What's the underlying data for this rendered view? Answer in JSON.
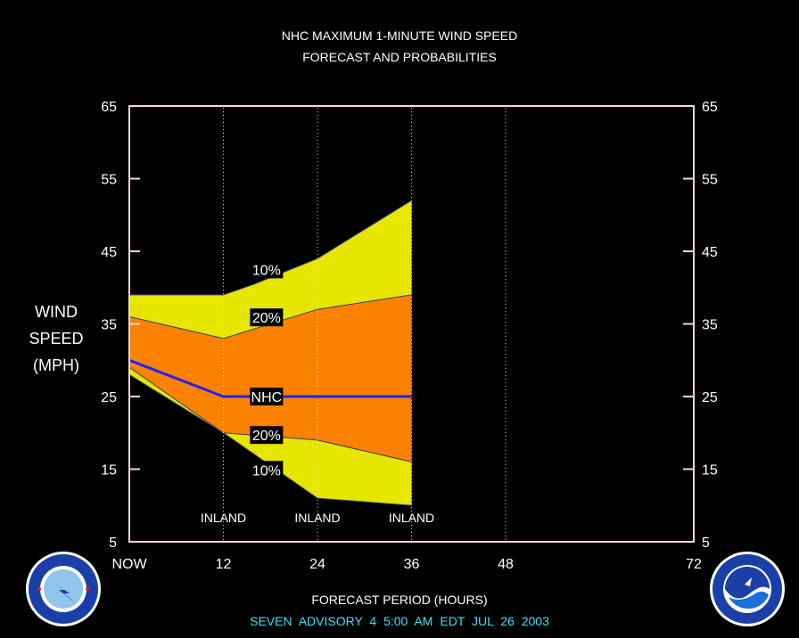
{
  "title_line1": "NHC MAXIMUM 1-MINUTE WIND SPEED",
  "title_line2": "FORECAST AND PROBABILITIES",
  "ylabel_lines": [
    "WIND",
    "SPEED",
    "(MPH)"
  ],
  "xlabel": "FORECAST PERIOD (HOURS)",
  "footer": "SEVEN   ADVISORY  4 5:00 AM  EDT  JUL 26 2003",
  "colors": {
    "background": "#000000",
    "band_10": "#e6e600",
    "band_20": "#fa8200",
    "nhc_line": "#2020ff",
    "frame": "#f2d6d6",
    "footer_text": "#40e0f0"
  },
  "logos": {
    "left": "nws-logo",
    "right": "noaa-logo"
  },
  "chart_data": {
    "type": "area",
    "xlim": [
      0,
      72
    ],
    "ylim": [
      5,
      65
    ],
    "x_ticks": [
      {
        "value": 0,
        "label": "NOW"
      },
      {
        "value": 12,
        "label": "12"
      },
      {
        "value": 24,
        "label": "24"
      },
      {
        "value": 36,
        "label": "36"
      },
      {
        "value": 48,
        "label": "48"
      },
      {
        "value": 72,
        "label": "72"
      }
    ],
    "y_ticks": [
      5,
      15,
      25,
      35,
      45,
      55,
      65
    ],
    "vertical_grid_x": [
      12,
      24,
      36,
      48
    ],
    "series": [
      {
        "name": "10%",
        "upper": [
          [
            0,
            39
          ],
          [
            12,
            39
          ],
          [
            16,
            40.5
          ],
          [
            24,
            44
          ],
          [
            36,
            52
          ]
        ],
        "lower": [
          [
            0,
            28
          ],
          [
            12,
            20
          ],
          [
            16,
            17
          ],
          [
            20,
            14
          ],
          [
            24,
            11
          ],
          [
            36,
            10
          ]
        ]
      },
      {
        "name": "20%",
        "upper": [
          [
            0,
            36
          ],
          [
            12,
            33
          ],
          [
            24,
            37
          ],
          [
            36,
            39
          ]
        ],
        "lower": [
          [
            0,
            29
          ],
          [
            12,
            20
          ],
          [
            24,
            19
          ],
          [
            36,
            16
          ]
        ]
      },
      {
        "name": "NHC",
        "values": [
          [
            0,
            30
          ],
          [
            12,
            25
          ],
          [
            24,
            25
          ],
          [
            36,
            25
          ]
        ]
      }
    ],
    "annotations": [
      {
        "text": "10%",
        "x": 17.5,
        "y": 42.5
      },
      {
        "text": "20%",
        "x": 17.5,
        "y": 35.9
      },
      {
        "text": "NHC",
        "x": 17.5,
        "y": 25
      },
      {
        "text": "20%",
        "x": 17.5,
        "y": 19.7
      },
      {
        "text": "10%",
        "x": 17.5,
        "y": 14.9
      },
      {
        "text": "INLAND",
        "x": 12,
        "y": 8.3
      },
      {
        "text": "INLAND",
        "x": 24,
        "y": 8.3
      },
      {
        "text": "INLAND",
        "x": 36,
        "y": 8.3
      }
    ]
  }
}
